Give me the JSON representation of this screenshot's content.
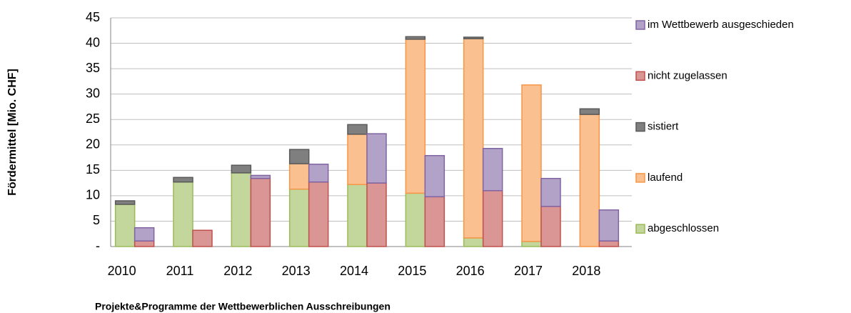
{
  "chart_data": {
    "type": "stacked-grouped-bar",
    "title": "Projekte&Programme der Wettbewerblichen Ausschreibungen",
    "y_label": "Fördermittel [Mio. CHF]",
    "categories": [
      "2010",
      "2011",
      "2012",
      "2013",
      "2014",
      "2015",
      "2016",
      "2017",
      "2018"
    ],
    "series": [
      {
        "name": "abgeschlossen",
        "color": "#c3d69b",
        "border": "#9bbb59",
        "stack": 0,
        "values": [
          8.3,
          12.7,
          14.5,
          11.3,
          12.2,
          10.5,
          1.7,
          1.0,
          0
        ]
      },
      {
        "name": "laufend",
        "color": "#fac090",
        "border": "#f79646",
        "stack": 0,
        "values": [
          0,
          0,
          0,
          5.0,
          9.9,
          30.3,
          39.2,
          30.8,
          26.0
        ]
      },
      {
        "name": "sistiert",
        "color": "#7f7f7f",
        "border": "#595959",
        "stack": 0,
        "values": [
          0.7,
          0.9,
          1.5,
          2.8,
          1.9,
          0.5,
          0.3,
          0,
          1.1
        ]
      },
      {
        "name": "nicht zugelassen",
        "color": "#d99694",
        "border": "#c0504d",
        "stack": 1,
        "values": [
          1.1,
          3.2,
          13.4,
          12.7,
          12.5,
          9.8,
          11.0,
          7.9,
          1.1
        ]
      },
      {
        "name": "im Wettbewerb ausgeschieden",
        "color": "#b3a2c7",
        "border": "#8064a2",
        "stack": 1,
        "values": [
          2.6,
          0,
          0.6,
          3.5,
          9.7,
          8.1,
          8.3,
          5.5,
          6.1
        ]
      }
    ],
    "ylim": [
      0,
      45
    ],
    "yticks": [
      {
        "value": 0,
        "label": "-"
      },
      5,
      10,
      15,
      20,
      25,
      30,
      35,
      40,
      45
    ],
    "grid": true,
    "legend": "right"
  }
}
